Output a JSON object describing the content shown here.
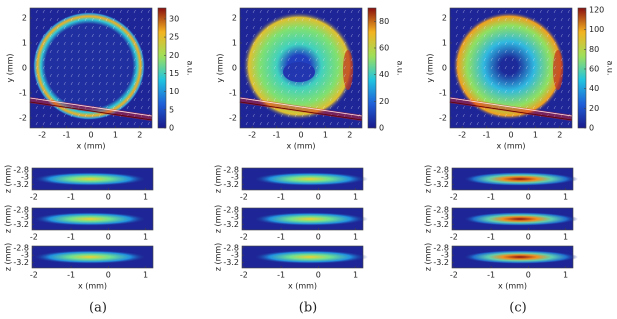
{
  "chart_data": [
    {
      "type": "heatmap",
      "caption": "(a)",
      "map": {
        "xlabel": "x (mm)",
        "ylabel": "y (mm)",
        "xlim": [
          -2.5,
          2.5
        ],
        "ylim": [
          -2.4,
          2.4
        ],
        "xticks": [
          -2,
          -1,
          0,
          1,
          2
        ],
        "yticks": [
          -2,
          -1,
          0,
          1,
          2
        ],
        "colorbar": {
          "label": "a.u.",
          "lim": [
            0,
            33
          ],
          "ticks": [
            0,
            5,
            10,
            15,
            20,
            25,
            30
          ]
        }
      },
      "sections": [
        {
          "ylabel": "z (mm)",
          "xlim": [
            -2.05,
            1.2
          ],
          "ylim": [
            -3.35,
            -2.75
          ],
          "xticks": [
            -2,
            -1,
            0,
            1
          ],
          "yticks": [
            -2.8,
            -3,
            -3.2
          ]
        },
        {
          "ylabel": "z (mm)",
          "xlim": [
            -2.05,
            1.2
          ],
          "ylim": [
            -3.35,
            -2.75
          ],
          "xticks": [
            -2,
            -1,
            0,
            1
          ],
          "yticks": [
            -2.8,
            -3,
            -3.2
          ]
        },
        {
          "ylabel": "z (mm)",
          "xlabel": "x (mm)",
          "xlim": [
            -2.05,
            1.2
          ],
          "ylim": [
            -3.35,
            -2.75
          ],
          "xticks": [
            -2,
            -1,
            0,
            1
          ],
          "yticks": [
            -2.8,
            -3,
            -3.2
          ]
        }
      ]
    },
    {
      "type": "heatmap",
      "caption": "(b)",
      "map": {
        "xlabel": "x (mm)",
        "ylabel": "y (mm)",
        "xlim": [
          -2.5,
          2.5
        ],
        "ylim": [
          -2.4,
          2.4
        ],
        "xticks": [
          -2,
          -1,
          0,
          1,
          2
        ],
        "yticks": [
          -2,
          -1,
          0,
          1,
          2
        ],
        "colorbar": {
          "label": "a.u.",
          "lim": [
            0,
            90
          ],
          "ticks": [
            0,
            20,
            40,
            60,
            80
          ]
        }
      },
      "sections": [
        {
          "ylabel": "z (mm)",
          "xlim": [
            -2.05,
            1.2
          ],
          "ylim": [
            -3.35,
            -2.75
          ],
          "xticks": [
            -2,
            -1,
            0,
            1
          ],
          "yticks": [
            -2.8,
            -3,
            -3.2
          ]
        },
        {
          "ylabel": "z (mm)",
          "xlim": [
            -2.05,
            1.2
          ],
          "ylim": [
            -3.35,
            -2.75
          ],
          "xticks": [
            -2,
            -1,
            0,
            1
          ],
          "yticks": [
            -2.8,
            -3,
            -3.2
          ]
        },
        {
          "ylabel": "z (mm)",
          "xlabel": "x (mm)",
          "xlim": [
            -2.05,
            1.2
          ],
          "ylim": [
            -3.35,
            -2.75
          ],
          "xticks": [
            -2,
            -1,
            0,
            1
          ],
          "yticks": [
            -2.8,
            -3,
            -3.2
          ]
        }
      ]
    },
    {
      "type": "heatmap",
      "caption": "(c)",
      "map": {
        "xlabel": "x (mm)",
        "ylabel": "y (mm)",
        "xlim": [
          -2.5,
          2.5
        ],
        "ylim": [
          -2.4,
          2.4
        ],
        "xticks": [
          -2,
          -1,
          0,
          1,
          2
        ],
        "yticks": [
          -2,
          -1,
          0,
          1,
          2
        ],
        "colorbar": {
          "label": "a.u.",
          "lim": [
            0,
            122
          ],
          "ticks": [
            0,
            20,
            40,
            60,
            80,
            100,
            120
          ]
        }
      },
      "sections": [
        {
          "ylabel": "z (mm)",
          "xlim": [
            -2.05,
            1.2
          ],
          "ylim": [
            -3.35,
            -2.75
          ],
          "xticks": [
            -2,
            -1,
            0,
            1
          ],
          "yticks": [
            -2.8,
            -3,
            -3.2
          ]
        },
        {
          "ylabel": "z (mm)",
          "xlim": [
            -2.05,
            1.2
          ],
          "ylim": [
            -3.35,
            -2.75
          ],
          "xticks": [
            -2,
            -1,
            0,
            1
          ],
          "yticks": [
            -2.8,
            -3,
            -3.2
          ]
        },
        {
          "ylabel": "z (mm)",
          "xlabel": "x (mm)",
          "xlim": [
            -2.05,
            1.2
          ],
          "ylim": [
            -3.35,
            -2.75
          ],
          "xticks": [
            -2,
            -1,
            0,
            1
          ],
          "yticks": [
            -2.8,
            -3,
            -3.2
          ]
        }
      ]
    }
  ]
}
